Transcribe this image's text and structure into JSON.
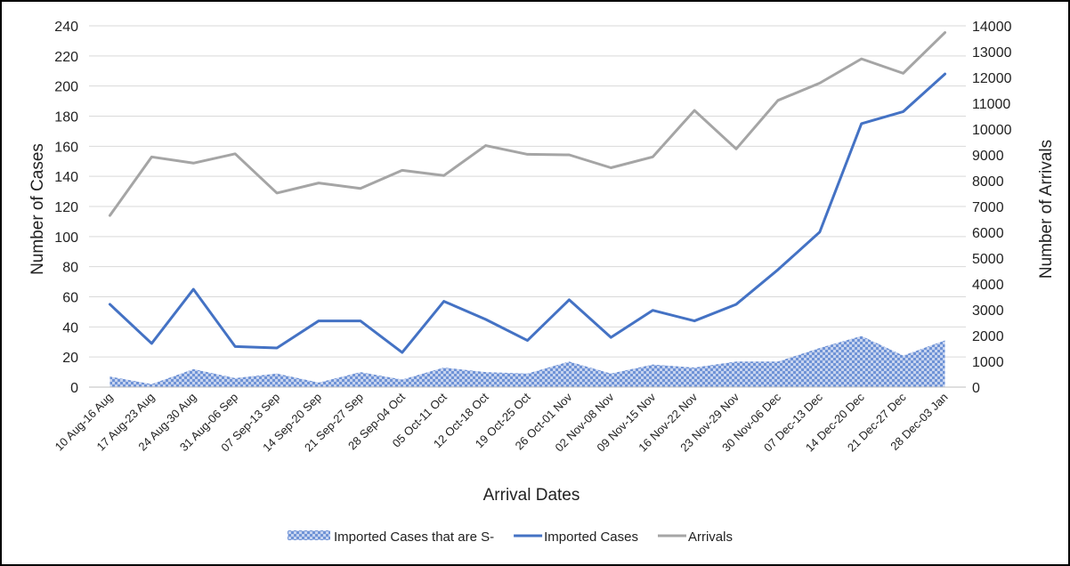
{
  "chart_data": {
    "type": "line",
    "title": "",
    "xlabel": "Arrival Dates",
    "ylabel": "Number of Cases",
    "y2label": "Number of Arrivals",
    "categories": [
      "10 Aug-16 Aug",
      "17 Aug-23 Aug",
      "24 Aug-30 Aug",
      "31 Aug-06 Sep",
      "07 Sep-13 Sep",
      "14 Sep-20 Sep",
      "21 Sep-27 Sep",
      "28 Sep-04 Oct",
      "05 Oct-11 Oct",
      "12 Oct-18 Oct",
      "19 Oct-25 Oct",
      "26 Oct-01 Nov",
      "02 Nov-08 Nov",
      "09 Nov-15 Nov",
      "16 Nov-22 Nov",
      "23 Nov-29 Nov",
      "30 Nov-06 Dec",
      "07 Dec-13 Dec",
      "14 Dec-20 Dec",
      "21 Dec-27 Dec",
      "28 Dec-03 Jan"
    ],
    "ylim": [
      0,
      240
    ],
    "y2lim": [
      0,
      14000
    ],
    "yticks": [
      "0",
      "20",
      "40",
      "60",
      "80",
      "100",
      "120",
      "140",
      "160",
      "180",
      "200",
      "220",
      "240"
    ],
    "y2ticks": [
      "0",
      "1000",
      "2000",
      "3000",
      "4000",
      "5000",
      "6000",
      "7000",
      "8000",
      "9000",
      "10000",
      "11000",
      "12000",
      "13000",
      "14000"
    ],
    "grid": true,
    "legend_position": "bottom",
    "series": [
      {
        "name": "Imported Cases that are S-",
        "type": "area",
        "axis": "left",
        "color": "#4472C4",
        "values": [
          7,
          2,
          12,
          6,
          9,
          3,
          10,
          5,
          13,
          10,
          9,
          17,
          9,
          15,
          13,
          17,
          17,
          26,
          34,
          21,
          31
        ]
      },
      {
        "name": "Imported Cases",
        "type": "line",
        "axis": "left",
        "color": "#4472C4",
        "values": [
          55,
          29,
          65,
          27,
          26,
          44,
          44,
          23,
          57,
          45,
          31,
          58,
          33,
          51,
          44,
          55,
          78,
          103,
          175,
          183,
          208
        ]
      },
      {
        "name": "Arrivals",
        "type": "line",
        "axis": "right",
        "color": "#A5A5A5",
        "values": [
          6650,
          8920,
          8680,
          9040,
          7520,
          7910,
          7700,
          8400,
          8200,
          9360,
          9020,
          9000,
          8500,
          8920,
          10720,
          9230,
          11110,
          11780,
          12720,
          12160,
          13740
        ]
      }
    ]
  }
}
